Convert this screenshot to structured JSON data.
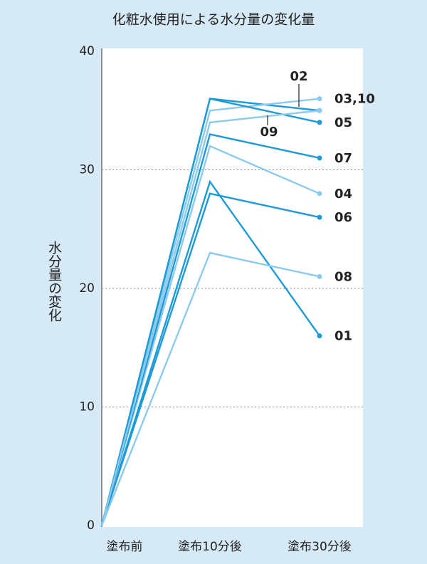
{
  "chart_data": {
    "type": "line",
    "title": "化粧水使用による水分量の変化量",
    "y_label": "水分量の変化",
    "categories": [
      "塗布前",
      "塗布10分後",
      "塗布30分後"
    ],
    "series": [
      {
        "name": "01",
        "color": "#1e9ad6",
        "values": [
          0,
          29,
          16
        ]
      },
      {
        "name": "02",
        "color": "#1e9ad6",
        "values": [
          0,
          36,
          35
        ]
      },
      {
        "name": "03,10",
        "color": "#8ccbee",
        "values": [
          0,
          35,
          36
        ]
      },
      {
        "name": "04",
        "color": "#8ccbee",
        "values": [
          0,
          32,
          28
        ]
      },
      {
        "name": "05",
        "color": "#1e9ad6",
        "values": [
          0,
          36,
          34
        ]
      },
      {
        "name": "06",
        "color": "#1e9ad6",
        "values": [
          0,
          28,
          26
        ]
      },
      {
        "name": "07",
        "color": "#1e9ad6",
        "values": [
          0,
          33,
          31
        ]
      },
      {
        "name": "08",
        "color": "#8ccbee",
        "values": [
          0,
          23,
          21
        ]
      },
      {
        "name": "09",
        "color": "#8ccbee",
        "values": [
          0,
          34,
          35
        ]
      }
    ],
    "ylim": [
      0,
      40
    ],
    "yticks": [
      0,
      10,
      20,
      30,
      40
    ],
    "grid": true
  }
}
